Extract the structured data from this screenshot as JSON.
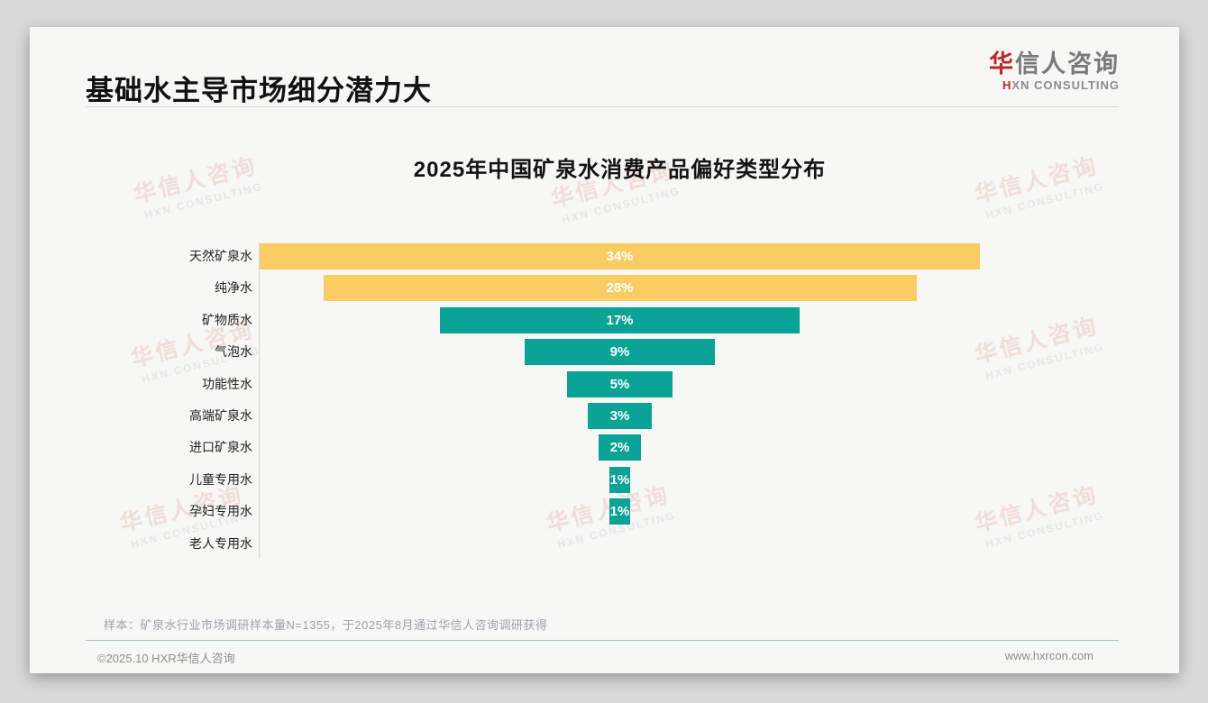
{
  "slide": {
    "page_title": "基础水主导市场细分潜力大",
    "logo": {
      "zh_accent": "华",
      "zh_rest": "信人咨询",
      "en_accent": "H",
      "en_rest": "XN CONSULTING"
    },
    "footnote": "样本：矿泉水行业市场调研样本量N=1355，于2025年8月通过华信人咨询调研获得",
    "footer_left": "©2025.10 HXR华信人咨询",
    "footer_right": "www.hxrcon.com"
  },
  "watermark": {
    "zh": "华信人咨询",
    "en": "HXN CONSULTING"
  },
  "chart_data": {
    "type": "bar",
    "variant": "centered-funnel-horizontal",
    "title": "2025年中国矿泉水消费产品偏好类型分布",
    "categories": [
      "天然矿泉水",
      "纯净水",
      "矿物质水",
      "气泡水",
      "功能性水",
      "高端矿泉水",
      "进口矿泉水",
      "儿童专用水",
      "孕妇专用水",
      "老人专用水"
    ],
    "values": [
      34,
      28,
      17,
      9,
      5,
      3,
      2,
      1,
      1,
      0
    ],
    "value_labels": [
      "34%",
      "28%",
      "17%",
      "9%",
      "5%",
      "3%",
      "2%",
      "1%",
      "1%",
      ""
    ],
    "bar_colors": [
      "#FACD64",
      "#FACD64",
      "#0AA396",
      "#0AA396",
      "#0AA396",
      "#0AA396",
      "#0AA396",
      "#0AA396",
      "#0AA396",
      "#0AA396"
    ],
    "color_yellow": "#FACD64",
    "color_teal": "#0AA396",
    "value_label_color": "#ffffff",
    "xlim": [
      0,
      40
    ],
    "grid": false,
    "legend": "none",
    "unit": "%"
  }
}
